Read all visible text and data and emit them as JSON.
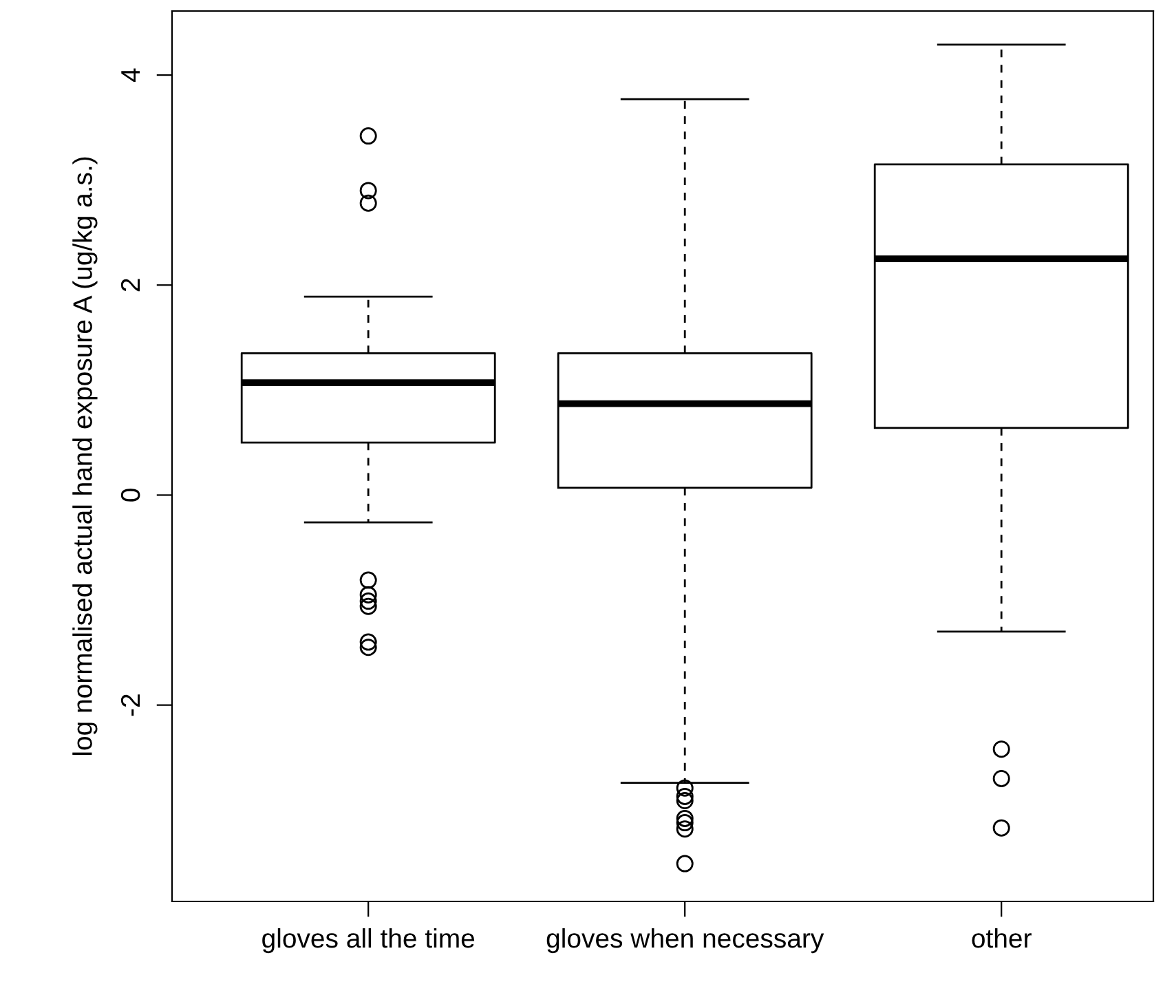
{
  "chart_data": {
    "type": "box",
    "ylabel": "log normalised actual hand exposure A (ug/kg a.s.)",
    "categories": [
      "gloves all the time",
      "gloves when necessary",
      "other"
    ],
    "boxes": [
      {
        "low": -0.26,
        "q1": 0.5,
        "median": 1.07,
        "q3": 1.35,
        "high": 1.89,
        "outliers": [
          3.42,
          2.9,
          2.78,
          -0.81,
          -0.95,
          -1.01,
          -1.06,
          -1.4,
          -1.45
        ]
      },
      {
        "low": -2.74,
        "q1": 0.07,
        "median": 0.87,
        "q3": 1.35,
        "high": 3.77,
        "outliers": [
          -2.79,
          -2.87,
          -2.91,
          -3.08,
          -3.12,
          -3.18,
          -3.51
        ]
      },
      {
        "low": -1.3,
        "q1": 0.64,
        "median": 2.25,
        "q3": 3.15,
        "high": 4.29,
        "outliers": [
          -2.42,
          -2.7,
          -3.17
        ]
      }
    ],
    "ylim": [
      -3.87,
      4.61
    ],
    "yticks": [
      -2,
      0,
      2,
      4
    ],
    "grid": false
  }
}
